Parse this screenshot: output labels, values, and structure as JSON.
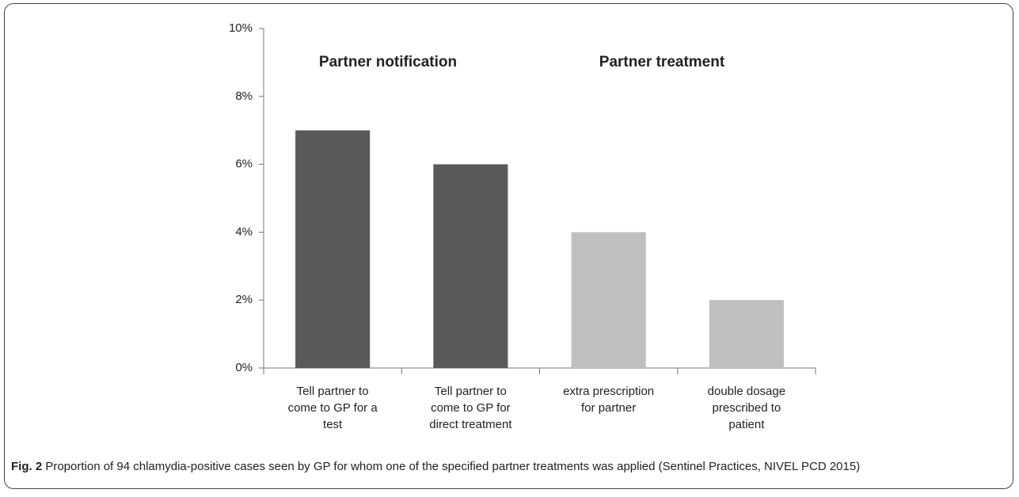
{
  "chart_data": {
    "type": "bar",
    "categories": [
      [
        "Tell partner to",
        "come to GP for a",
        "test"
      ],
      [
        "Tell partner to",
        "come to GP for",
        "direct treatment"
      ],
      [
        "extra prescription",
        "for partner"
      ],
      [
        "double dosage",
        "prescribed to",
        "patient"
      ]
    ],
    "values": [
      7,
      6,
      4,
      2
    ],
    "colors": [
      "#595959",
      "#595959",
      "#bfbfbf",
      "#bfbfbf"
    ],
    "ylim": [
      0,
      10
    ],
    "yticks": [
      {
        "value": 0,
        "label": "0%"
      },
      {
        "value": 2,
        "label": "2%"
      },
      {
        "value": 4,
        "label": "4%"
      },
      {
        "value": 6,
        "label": "6%"
      },
      {
        "value": 8,
        "label": "8%"
      },
      {
        "value": 10,
        "label": "10%"
      }
    ],
    "grid": false,
    "annotations": [
      "Partner notification",
      "Partner treatment"
    ]
  },
  "caption": {
    "label": "Fig. 2",
    "text": "Proportion of 94 chlamydia-positive cases seen by GP for whom one of the specified partner treatments was applied (Sentinel Practices, NIVEL PCD 2015)"
  }
}
